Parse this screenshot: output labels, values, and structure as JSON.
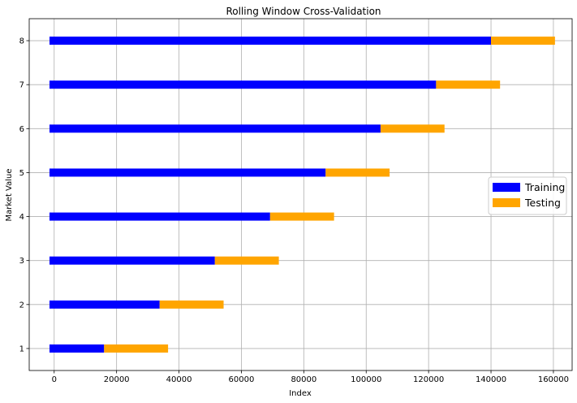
{
  "chart_data": {
    "type": "bar",
    "orientation": "horizontal-stacked",
    "title": "Rolling Window Cross-Validation",
    "xlabel": "Index",
    "ylabel": "Market Value",
    "xlim": [
      -8000,
      166000
    ],
    "ylim": [
      0.5,
      8.5
    ],
    "xticks": [
      0,
      20000,
      40000,
      60000,
      80000,
      100000,
      120000,
      140000,
      160000
    ],
    "yticks": [
      1,
      2,
      3,
      4,
      5,
      6,
      7,
      8
    ],
    "grid": true,
    "legend_position": "center-right",
    "categories": [
      1,
      2,
      3,
      4,
      5,
      6,
      7,
      8
    ],
    "series": [
      {
        "name": "Training",
        "color": "#0000ff",
        "segments": [
          {
            "y": 1,
            "start": -1500,
            "end": 16000
          },
          {
            "y": 2,
            "start": -1500,
            "end": 33800
          },
          {
            "y": 3,
            "start": -1500,
            "end": 51500
          },
          {
            "y": 4,
            "start": -1500,
            "end": 69200
          },
          {
            "y": 5,
            "start": -1500,
            "end": 87000
          },
          {
            "y": 6,
            "start": -1500,
            "end": 104600
          },
          {
            "y": 7,
            "start": -1500,
            "end": 122400
          },
          {
            "y": 8,
            "start": -1500,
            "end": 140000
          }
        ]
      },
      {
        "name": "Testing",
        "color": "#ffa500",
        "segments": [
          {
            "y": 1,
            "start": 16000,
            "end": 36500
          },
          {
            "y": 2,
            "start": 33800,
            "end": 54300
          },
          {
            "y": 3,
            "start": 51500,
            "end": 72000
          },
          {
            "y": 4,
            "start": 69200,
            "end": 89700
          },
          {
            "y": 5,
            "start": 87000,
            "end": 107500
          },
          {
            "y": 6,
            "start": 104600,
            "end": 125100
          },
          {
            "y": 7,
            "start": 122400,
            "end": 142900
          },
          {
            "y": 8,
            "start": 140000,
            "end": 160500
          }
        ]
      }
    ]
  }
}
